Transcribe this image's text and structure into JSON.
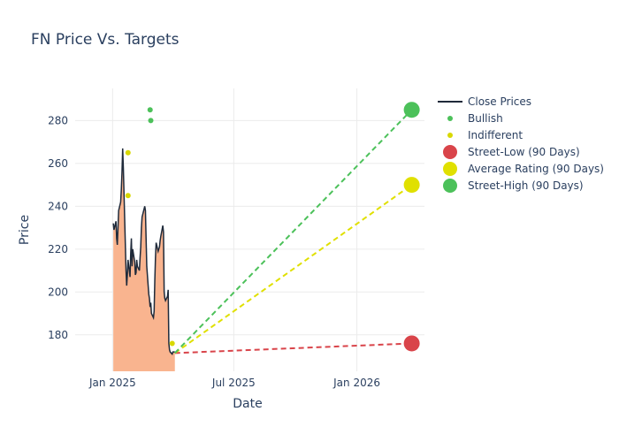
{
  "chart_data": {
    "type": "line",
    "title": "FN Price Vs. Targets",
    "xlabel": "Date",
    "ylabel": "Price",
    "xlim": [
      "2024-11-06",
      "2026-04-12"
    ],
    "ylim": [
      163,
      295
    ],
    "x_ticks": [
      {
        "date": "2025-01-01",
        "label": "Jan 2025"
      },
      {
        "date": "2025-07-01",
        "label": "Jul 2025"
      },
      {
        "date": "2026-01-01",
        "label": "Jan 2026"
      }
    ],
    "y_ticks": [
      180,
      200,
      220,
      240,
      260,
      280
    ],
    "grid": true,
    "legend_position": "right",
    "colors": {
      "close": "#1f2a3a",
      "fill": "#f9b48f",
      "bullish": "#4cc15a",
      "indifferent": "#d8d800",
      "street_low": "#d9444a",
      "average": "#e0e000",
      "street_high": "#4cc15a",
      "grid": "#ebebeb"
    },
    "series": [
      {
        "name": "Close Prices",
        "x": [
          "2025-01-02",
          "2025-01-03",
          "2025-01-06",
          "2025-01-07",
          "2025-01-08",
          "2025-01-09",
          "2025-01-10",
          "2025-01-13",
          "2025-01-14",
          "2025-01-15",
          "2025-01-16",
          "2025-01-17",
          "2025-01-21",
          "2025-01-22",
          "2025-01-23",
          "2025-01-24",
          "2025-01-27",
          "2025-01-28",
          "2025-01-29",
          "2025-01-30",
          "2025-01-31",
          "2025-02-03",
          "2025-02-04",
          "2025-02-05",
          "2025-02-06",
          "2025-02-07",
          "2025-02-10",
          "2025-02-11",
          "2025-02-12",
          "2025-02-13",
          "2025-02-14",
          "2025-02-18",
          "2025-02-19",
          "2025-02-20",
          "2025-02-21",
          "2025-02-24",
          "2025-02-25",
          "2025-02-26",
          "2025-02-27",
          "2025-02-28",
          "2025-03-03",
          "2025-03-04",
          "2025-03-05",
          "2025-03-06",
          "2025-03-07",
          "2025-03-10",
          "2025-03-11",
          "2025-03-12",
          "2025-03-13",
          "2025-03-14",
          "2025-03-17",
          "2025-03-18",
          "2025-03-19",
          "2025-03-20",
          "2025-03-21",
          "2025-03-24",
          "2025-03-25",
          "2025-03-26",
          "2025-03-27",
          "2025-03-28",
          "2025-03-31",
          "2025-04-01",
          "2025-04-02",
          "2025-04-03",
          "2025-04-04"
        ],
        "values": [
          232,
          229,
          233,
          225,
          222,
          230,
          238,
          242,
          248,
          256,
          267,
          258,
          210,
          203,
          208,
          215,
          207,
          218,
          225,
          212,
          220,
          214,
          208,
          209,
          215,
          212,
          210,
          216,
          221,
          230,
          235,
          240,
          238,
          225,
          212,
          199,
          197,
          193,
          195,
          190,
          188,
          191,
          205,
          216,
          223,
          219,
          220,
          221,
          224,
          226,
          231,
          228,
          200,
          197,
          196,
          198,
          201,
          176,
          173,
          172,
          171,
          172,
          172,
          172,
          172
        ]
      },
      {
        "name": "Bullish",
        "x": [
          "2025-02-26",
          "2025-02-27"
        ],
        "values": [
          285,
          280
        ]
      },
      {
        "name": "Indifferent",
        "x": [
          "2025-01-24",
          "2025-01-24",
          "2025-03-31"
        ],
        "values": [
          265,
          245,
          176
        ]
      },
      {
        "name": "Street-Low (90 Days)",
        "x": [
          "2025-04-04",
          "2026-03-24"
        ],
        "values": [
          171.5,
          176
        ]
      },
      {
        "name": "Average Rating (90 Days)",
        "x": [
          "2025-04-04",
          "2026-03-24"
        ],
        "values": [
          171.5,
          250
        ]
      },
      {
        "name": "Street-High (90 Days)",
        "x": [
          "2025-04-04",
          "2026-03-24"
        ],
        "values": [
          171.5,
          285
        ]
      }
    ]
  }
}
